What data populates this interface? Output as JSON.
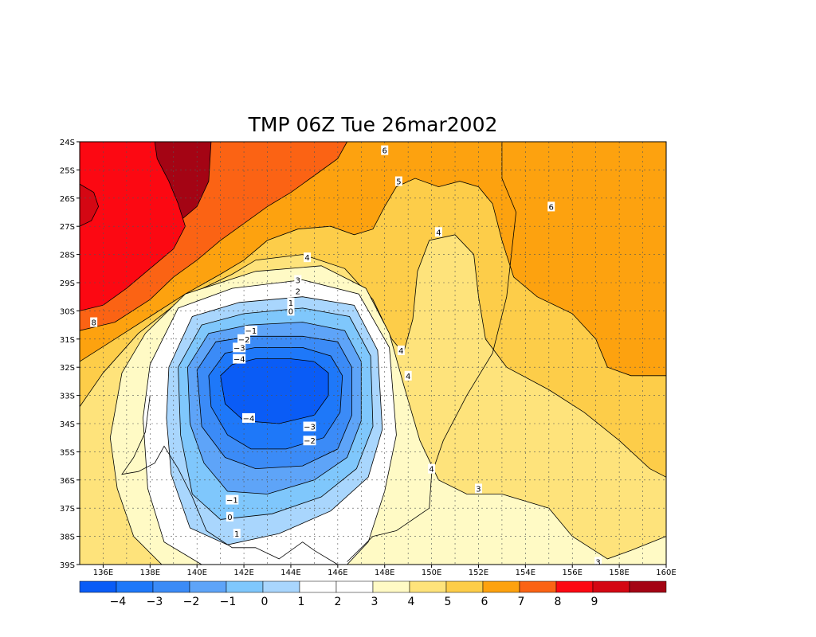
{
  "chart_data": {
    "type": "heatmap",
    "title": "TMP 06Z Tue 26mar2002",
    "xlabel": "",
    "ylabel": "",
    "x_ticks": [
      "136E",
      "138E",
      "140E",
      "142E",
      "144E",
      "146E",
      "148E",
      "150E",
      "152E",
      "154E",
      "156E",
      "158E",
      "160E"
    ],
    "y_ticks": [
      "24S",
      "25S",
      "26S",
      "27S",
      "28S",
      "29S",
      "30S",
      "31S",
      "32S",
      "33S",
      "34S",
      "35S",
      "36S",
      "37S",
      "38S",
      "39S"
    ],
    "xlim": [
      135,
      160
    ],
    "ylim": [
      -39,
      -24
    ],
    "grid": true,
    "colorbar": {
      "placement": "bottom",
      "labels": [
        "-4",
        "-3",
        "-2",
        "-1",
        "0",
        "1",
        "2",
        "3",
        "4",
        "5",
        "6",
        "7",
        "8",
        "9"
      ],
      "colors": [
        "#0a5cf6",
        "#1e78f9",
        "#3b8bf7",
        "#5ea4f8",
        "#7fc7fc",
        "#a9d6fd",
        "#ffffff",
        "#ffffff",
        "#fffac5",
        "#fee37b",
        "#fdcd49",
        "#fda20f",
        "#fb6314",
        "#fc0812",
        "#d40713",
        "#a40414"
      ]
    },
    "levels": [
      {
        "value": -4,
        "color": "#0a5cf6",
        "polygon": [
          [
            141.0,
            -32.3
          ],
          [
            141.5,
            -31.9
          ],
          [
            142.5,
            -31.7
          ],
          [
            144.0,
            -31.7
          ],
          [
            145.0,
            -31.8
          ],
          [
            145.6,
            -32.2
          ],
          [
            145.6,
            -33.0
          ],
          [
            145.0,
            -33.7
          ],
          [
            143.5,
            -34.0
          ],
          [
            142.0,
            -33.9
          ],
          [
            141.2,
            -33.3
          ]
        ]
      },
      {
        "value": -3,
        "color": "#1e78f9",
        "polygon": [
          [
            140.5,
            -32.3
          ],
          [
            141.2,
            -31.5
          ],
          [
            142.5,
            -31.3
          ],
          [
            144.5,
            -31.3
          ],
          [
            145.7,
            -31.6
          ],
          [
            146.2,
            -32.3
          ],
          [
            146.1,
            -33.6
          ],
          [
            145.4,
            -34.5
          ],
          [
            143.8,
            -34.9
          ],
          [
            142.3,
            -34.9
          ],
          [
            141.3,
            -34.4
          ],
          [
            140.6,
            -33.4
          ]
        ]
      },
      {
        "value": -2,
        "color": "#3b8bf7",
        "polygon": [
          [
            140.0,
            -32.1
          ],
          [
            140.8,
            -31.1
          ],
          [
            142.3,
            -30.9
          ],
          [
            144.5,
            -30.9
          ],
          [
            146.0,
            -31.1
          ],
          [
            146.6,
            -32.0
          ],
          [
            146.6,
            -33.7
          ],
          [
            146.0,
            -34.9
          ],
          [
            144.5,
            -35.5
          ],
          [
            142.5,
            -35.6
          ],
          [
            141.2,
            -35.2
          ],
          [
            140.2,
            -34.1
          ]
        ]
      },
      {
        "value": -1,
        "color": "#5ea4f8",
        "polygon": [
          [
            139.6,
            -32.0
          ],
          [
            140.5,
            -30.8
          ],
          [
            142.2,
            -30.5
          ],
          [
            144.5,
            -30.4
          ],
          [
            146.3,
            -30.7
          ],
          [
            147.0,
            -31.8
          ],
          [
            147.0,
            -33.9
          ],
          [
            146.4,
            -35.2
          ],
          [
            145.0,
            -36.0
          ],
          [
            143.0,
            -36.5
          ],
          [
            141.3,
            -36.4
          ],
          [
            140.3,
            -35.4
          ],
          [
            139.7,
            -34.0
          ]
        ]
      },
      {
        "value": 0,
        "color": "#7fc7fc",
        "polygon": [
          [
            139.2,
            -32.0
          ],
          [
            140.2,
            -30.5
          ],
          [
            142.0,
            -30.1
          ],
          [
            144.5,
            -29.9
          ],
          [
            146.5,
            -30.2
          ],
          [
            147.4,
            -31.6
          ],
          [
            147.5,
            -34.1
          ],
          [
            146.8,
            -35.6
          ],
          [
            145.3,
            -36.6
          ],
          [
            143.2,
            -37.2
          ],
          [
            141.0,
            -37.4
          ],
          [
            139.8,
            -36.5
          ],
          [
            139.3,
            -34.4
          ]
        ]
      },
      {
        "value": 1,
        "color": "#a9d6fd",
        "polygon": [
          [
            138.8,
            -32.0
          ],
          [
            139.8,
            -30.2
          ],
          [
            141.8,
            -29.7
          ],
          [
            144.5,
            -29.5
          ],
          [
            146.7,
            -29.8
          ],
          [
            147.7,
            -31.4
          ],
          [
            147.9,
            -34.2
          ],
          [
            147.3,
            -35.9
          ],
          [
            145.7,
            -37.1
          ],
          [
            143.5,
            -37.9
          ],
          [
            141.3,
            -38.3
          ],
          [
            139.7,
            -37.7
          ],
          [
            138.9,
            -35.8
          ],
          [
            138.7,
            -33.8
          ]
        ]
      },
      {
        "value": 2,
        "color": "#ffffff",
        "polygon": [
          [
            138.0,
            -31.9
          ],
          [
            139.2,
            -29.9
          ],
          [
            141.5,
            -29.2
          ],
          [
            144.5,
            -28.9
          ],
          [
            146.9,
            -29.4
          ],
          [
            148.2,
            -31.3
          ],
          [
            148.5,
            -34.4
          ],
          [
            148.0,
            -36.4
          ],
          [
            147.3,
            -38.2
          ],
          [
            146.4,
            -39.0
          ],
          [
            140.2,
            -39.0
          ],
          [
            138.6,
            -38.2
          ],
          [
            137.9,
            -36.3
          ],
          [
            137.7,
            -33.8
          ]
        ]
      },
      {
        "value": 3,
        "color": "#fffac5",
        "polygon": [
          [
            136.8,
            -32.2
          ],
          [
            137.8,
            -30.8
          ],
          [
            139.5,
            -29.4
          ],
          [
            142.5,
            -28.6
          ],
          [
            145.3,
            -28.4
          ],
          [
            147.2,
            -29.2
          ],
          [
            148.2,
            -30.8
          ],
          [
            148.8,
            -32.6
          ],
          [
            149.5,
            -34.6
          ],
          [
            150.3,
            -36.0
          ],
          [
            151.5,
            -36.5
          ],
          [
            153.0,
            -36.5
          ],
          [
            155.0,
            -37.0
          ],
          [
            156.0,
            -38.0
          ],
          [
            157.5,
            -38.8
          ],
          [
            158.5,
            -38.5
          ],
          [
            160.0,
            -38.0
          ],
          [
            160.0,
            -39.0
          ],
          [
            138.5,
            -39.0
          ],
          [
            137.3,
            -38.0
          ],
          [
            136.6,
            -36.3
          ],
          [
            136.3,
            -34.5
          ]
        ]
      },
      {
        "value": 4,
        "color": "#fee37b",
        "polygon": [
          [
            135.0,
            -33.4
          ],
          [
            136.0,
            -32.2
          ],
          [
            137.5,
            -30.8
          ],
          [
            139.5,
            -29.5
          ],
          [
            141.5,
            -28.7
          ],
          [
            142.5,
            -28.2
          ],
          [
            144.5,
            -28.0
          ],
          [
            146.3,
            -28.5
          ],
          [
            147.5,
            -29.6
          ],
          [
            148.3,
            -31.0
          ],
          [
            148.8,
            -31.5
          ],
          [
            149.2,
            -30.3
          ],
          [
            149.4,
            -28.6
          ],
          [
            149.9,
            -27.5
          ],
          [
            151.0,
            -27.3
          ],
          [
            151.8,
            -28.0
          ],
          [
            152.0,
            -29.5
          ],
          [
            152.3,
            -31.0
          ],
          [
            153.2,
            -32.0
          ],
          [
            155.0,
            -32.8
          ],
          [
            156.5,
            -33.6
          ],
          [
            158.0,
            -34.6
          ],
          [
            159.3,
            -35.6
          ],
          [
            160.0,
            -35.9
          ],
          [
            160.0,
            -39.0
          ],
          [
            135.0,
            -39.0
          ]
        ]
      },
      {
        "value": 5,
        "color": "#fdcd49",
        "polygon": [
          [
            135.0,
            -31.8
          ],
          [
            136.5,
            -31.0
          ],
          [
            138.0,
            -30.2
          ],
          [
            139.5,
            -29.4
          ],
          [
            141.0,
            -28.7
          ],
          [
            142.0,
            -28.2
          ],
          [
            143.0,
            -27.5
          ],
          [
            144.3,
            -27.1
          ],
          [
            145.7,
            -27.0
          ],
          [
            146.7,
            -27.3
          ],
          [
            147.5,
            -27.1
          ],
          [
            148.0,
            -26.3
          ],
          [
            148.5,
            -25.6
          ],
          [
            149.3,
            -25.3
          ],
          [
            150.3,
            -25.6
          ],
          [
            151.2,
            -25.4
          ],
          [
            152.0,
            -25.6
          ],
          [
            152.6,
            -26.2
          ],
          [
            153.0,
            -27.5
          ],
          [
            153.5,
            -28.8
          ],
          [
            154.5,
            -29.5
          ],
          [
            156.0,
            -30.1
          ],
          [
            157.0,
            -31.0
          ],
          [
            157.5,
            -32.0
          ],
          [
            158.5,
            -32.3
          ],
          [
            160.0,
            -32.3
          ],
          [
            160.0,
            -39.0
          ],
          [
            135.0,
            -39.0
          ]
        ]
      },
      {
        "value": 6,
        "color": "#fda20f",
        "polygon": [
          [
            135.0,
            -30.7
          ],
          [
            136.5,
            -30.4
          ],
          [
            138.0,
            -29.6
          ],
          [
            139.0,
            -28.8
          ],
          [
            140.0,
            -28.2
          ],
          [
            141.0,
            -27.5
          ],
          [
            142.0,
            -26.9
          ],
          [
            143.0,
            -26.3
          ],
          [
            144.0,
            -25.8
          ],
          [
            145.0,
            -25.2
          ],
          [
            146.0,
            -24.6
          ],
          [
            146.4,
            -24.0
          ],
          [
            160.0,
            -24.0
          ],
          [
            160.0,
            -39.0
          ],
          [
            135.0,
            -39.0
          ]
        ]
      },
      {
        "value": 7,
        "color": "#fb6314",
        "polygon": [
          [
            135.0,
            -29.7
          ],
          [
            136.0,
            -29.1
          ],
          [
            137.0,
            -28.5
          ],
          [
            138.0,
            -27.7
          ],
          [
            139.0,
            -27.0
          ],
          [
            140.0,
            -26.3
          ],
          [
            140.5,
            -25.4
          ],
          [
            140.6,
            -24.0
          ],
          [
            153.0,
            -24.0
          ],
          [
            152.5,
            -24.4
          ],
          [
            153.0,
            -25.2
          ],
          [
            153.8,
            -25.9
          ],
          [
            153.5,
            -26.2
          ],
          [
            154.0,
            -27.3
          ],
          [
            154.5,
            -28.3
          ],
          [
            155.0,
            -28.8
          ],
          [
            156.3,
            -29.3
          ],
          [
            157.8,
            -29.9
          ],
          [
            158.6,
            -30.5
          ],
          [
            159.4,
            -31.0
          ],
          [
            160.0,
            -31.1
          ],
          [
            160.0,
            -39.0
          ],
          [
            135.0,
            -39.0
          ]
        ]
      },
      {
        "value": 8,
        "color": "#fc0812",
        "polygon": [
          [
            135.0,
            -30.0
          ],
          [
            136.0,
            -29.8
          ],
          [
            137.0,
            -29.2
          ],
          [
            138.0,
            -28.5
          ],
          [
            139.0,
            -27.8
          ],
          [
            139.5,
            -27.0
          ],
          [
            139.2,
            -26.2
          ],
          [
            138.8,
            -25.4
          ],
          [
            138.3,
            -24.6
          ],
          [
            138.2,
            -24.0
          ],
          [
            135.0,
            -24.0
          ]
        ]
      },
      {
        "value": 9,
        "color": "#d40713",
        "polygon": [
          [
            135.0,
            -25.5
          ],
          [
            135.6,
            -25.8
          ],
          [
            135.8,
            -26.3
          ],
          [
            135.5,
            -26.8
          ],
          [
            135.0,
            -27.0
          ]
        ]
      }
    ],
    "contour_labels": [
      {
        "text": "6",
        "x": 148.0,
        "y": -24.3
      },
      {
        "text": "5",
        "x": 148.6,
        "y": -25.4
      },
      {
        "text": "6",
        "x": 155.1,
        "y": -26.3
      },
      {
        "text": "4",
        "x": 150.3,
        "y": -27.2
      },
      {
        "text": "4",
        "x": 144.7,
        "y": -28.1
      },
      {
        "text": "3",
        "x": 144.3,
        "y": -28.9
      },
      {
        "text": "2",
        "x": 144.3,
        "y": -29.3
      },
      {
        "text": "1",
        "x": 144.0,
        "y": -29.7
      },
      {
        "text": "0",
        "x": 144.0,
        "y": -30.0
      },
      {
        "text": "8",
        "x": 135.6,
        "y": -30.4
      },
      {
        "text": "−1",
        "x": 142.3,
        "y": -30.7
      },
      {
        "text": "−2",
        "x": 142.0,
        "y": -31.0
      },
      {
        "text": "−3",
        "x": 141.8,
        "y": -31.3
      },
      {
        "text": "−4",
        "x": 141.8,
        "y": -31.7
      },
      {
        "text": "4",
        "x": 148.7,
        "y": -31.4
      },
      {
        "text": "4",
        "x": 149.0,
        "y": -32.3
      },
      {
        "text": "−4",
        "x": 142.2,
        "y": -33.8
      },
      {
        "text": "−3",
        "x": 144.8,
        "y": -34.1
      },
      {
        "text": "−2",
        "x": 144.8,
        "y": -34.6
      },
      {
        "text": "4",
        "x": 150.0,
        "y": -35.6
      },
      {
        "text": "3",
        "x": 152.0,
        "y": -36.3
      },
      {
        "text": "−1",
        "x": 141.5,
        "y": -36.7
      },
      {
        "text": "0",
        "x": 141.4,
        "y": -37.3
      },
      {
        "text": "1",
        "x": 141.7,
        "y": -37.9
      },
      {
        "text": "3",
        "x": 157.1,
        "y": -38.9
      }
    ]
  }
}
